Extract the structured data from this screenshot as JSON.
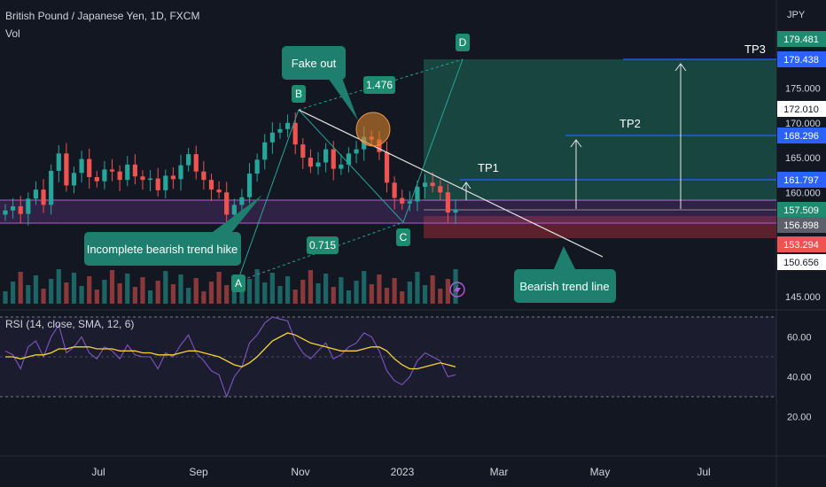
{
  "header": {
    "symbol": "British Pound / Japanese Yen, 1D, FXCM",
    "volume_label": "Vol",
    "currency": "JPY",
    "rsi_label": "RSI (14, close, SMA, 12, 6)"
  },
  "colors": {
    "background": "#131722",
    "up": "#26a69a",
    "down": "#ef5350",
    "rsi_line": "#7e57c2",
    "rsi_ma": "#f5d33b",
    "callout": "#1f7f6f",
    "target_zone": "#1b4d45",
    "stop_zone": "#6b2330",
    "blue_line": "#2962ff",
    "fake_out_circle": "#d9822b",
    "text": "#d1d4dc"
  },
  "annotations": {
    "fake_out": "Fake out",
    "incomplete": "Incomplete bearish trend hike",
    "bearish_line": "Bearish trend line",
    "ratio_bd": "1.476",
    "ratio_ac": "0.715",
    "point_a": "A",
    "point_b": "B",
    "point_c": "C",
    "point_d": "D",
    "tp1": "TP1",
    "tp2": "TP2",
    "tp3": "TP3"
  },
  "price_badges": [
    {
      "value": "179.481",
      "bg": "#1e8a6f",
      "fg": "#ffffff"
    },
    {
      "value": "179.438",
      "bg": "#2962ff",
      "fg": "#ffffff"
    },
    {
      "value": "172.010",
      "bg": "#ffffff",
      "fg": "#131722"
    },
    {
      "value": "168.296",
      "bg": "#2962ff",
      "fg": "#ffffff"
    },
    {
      "value": "161.797",
      "bg": "#2962ff",
      "fg": "#ffffff"
    },
    {
      "value": "157.509",
      "bg": "#1e8a6f",
      "fg": "#ffffff"
    },
    {
      "value": "156.898",
      "bg": "#5d606b",
      "fg": "#ffffff"
    },
    {
      "value": "153.294",
      "bg": "#ef5350",
      "fg": "#ffffff"
    },
    {
      "value": "150.656",
      "bg": "#ffffff",
      "fg": "#131722"
    }
  ],
  "chart_data": [
    {
      "type": "candlestick",
      "title": "British Pound / Japanese Yen, 1D, FXCM",
      "y_axis_ticks": [
        "175.000",
        "170.000",
        "165.000",
        "160.000",
        "145.000"
      ],
      "x_axis_ticks": [
        "Jul",
        "Sep",
        "Nov",
        "2023",
        "Mar",
        "May",
        "Jul"
      ],
      "ylim": [
        145,
        182
      ],
      "pattern_points": [
        {
          "label": "A",
          "date": "Sep",
          "price": 148.0
        },
        {
          "label": "B",
          "date": "Oct",
          "price": 172.1
        },
        {
          "label": "C",
          "date": "Jan",
          "price": 155.4
        },
        {
          "label": "D",
          "date": "Feb",
          "price": 179.5
        }
      ],
      "levels": {
        "tp1": 161.797,
        "tp2": 168.296,
        "tp3": 179.438,
        "entry": 157.509,
        "stop": 153.294,
        "target_zone_top": 179.481
      },
      "close_series": [
        157.4,
        158.0,
        156.9,
        159.1,
        160.4,
        158.2,
        163.1,
        165.6,
        161.0,
        162.8,
        164.8,
        162.2,
        161.6,
        163.3,
        163.0,
        161.8,
        164.0,
        162.3,
        161.8,
        162.0,
        160.3,
        162.4,
        161.9,
        163.9,
        165.5,
        163.0,
        161.8,
        160.4,
        160.0,
        156.8,
        158.2,
        159.3,
        162.7,
        164.7,
        167.2,
        168.6,
        169.1,
        170.0,
        166.9,
        165.0,
        163.7,
        164.3,
        166.2,
        163.4,
        164.0,
        165.6,
        166.2,
        168.0,
        167.6,
        165.8,
        161.4,
        159.2,
        158.4,
        158.7,
        160.8,
        161.4,
        160.9,
        160.0,
        157.1,
        157.5
      ]
    },
    {
      "type": "line",
      "title": "RSI (14, close, SMA, 12, 6)",
      "y_axis_ticks": [
        "60.00",
        "40.00",
        "20.00"
      ],
      "ylim": [
        15,
        72
      ],
      "series": [
        {
          "name": "RSI",
          "values": [
            53,
            51,
            44,
            55,
            58,
            50,
            60,
            66,
            52,
            55,
            60,
            52,
            49,
            55,
            53,
            49,
            56,
            51,
            50,
            50,
            44,
            52,
            50,
            56,
            61,
            52,
            48,
            43,
            41,
            30,
            40,
            45,
            57,
            61,
            67,
            70,
            69,
            68,
            58,
            52,
            49,
            53,
            57,
            49,
            51,
            55,
            57,
            62,
            60,
            53,
            43,
            38,
            36,
            40,
            48,
            52,
            50,
            48,
            40,
            41
          ]
        },
        {
          "name": "RSI-based MA",
          "values": [
            50,
            50,
            49,
            50,
            51,
            51,
            52,
            54,
            54,
            55,
            55,
            55,
            54,
            54,
            54,
            53,
            53,
            53,
            52,
            52,
            51,
            51,
            51,
            52,
            53,
            53,
            52,
            51,
            50,
            48,
            46,
            45,
            47,
            50,
            54,
            58,
            60,
            62,
            61,
            59,
            57,
            56,
            55,
            54,
            53,
            53,
            53,
            54,
            55,
            55,
            53,
            49,
            46,
            44,
            44,
            45,
            46,
            47,
            46,
            45
          ]
        }
      ]
    }
  ]
}
